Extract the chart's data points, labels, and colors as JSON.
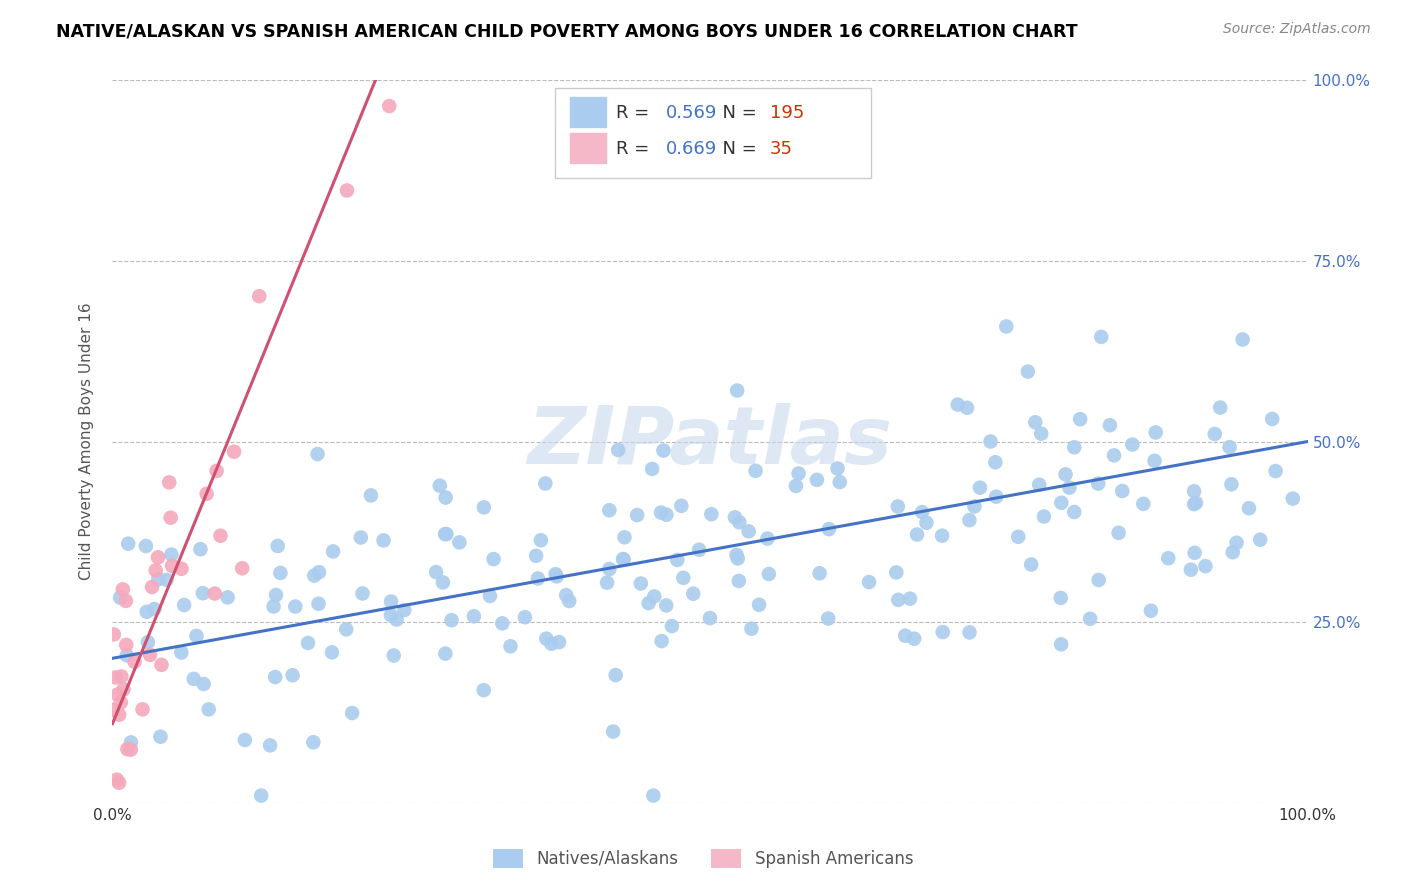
{
  "title": "NATIVE/ALASKAN VS SPANISH AMERICAN CHILD POVERTY AMONG BOYS UNDER 16 CORRELATION CHART",
  "source": "Source: ZipAtlas.com",
  "ylabel": "Child Poverty Among Boys Under 16",
  "native_R": 0.569,
  "native_N": 195,
  "spanish_R": 0.669,
  "spanish_N": 35,
  "native_color": "#aaccee",
  "spanish_color": "#f4a8bc",
  "native_line_color": "#4472c4",
  "spanish_line_color": "#d05070",
  "legend_box_native": "#aaccee",
  "legend_box_spanish": "#f4b8c8",
  "watermark": "ZIPatlas",
  "background_color": "#ffffff",
  "grid_color": "#bbbbbb",
  "title_color": "#000000",
  "axis_label_color": "#555555",
  "right_label_color": "#4472c4"
}
